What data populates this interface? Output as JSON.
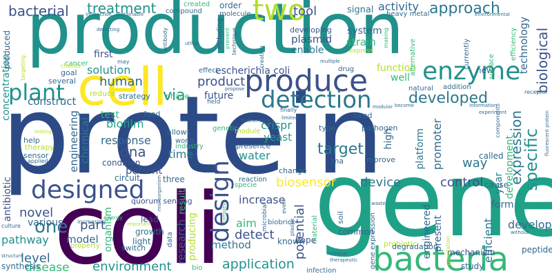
{
  "palette": {
    "navy": "#2c4a86",
    "indigo": "#3b528b",
    "purple": "#481f70",
    "dark_purple": "#440154",
    "slate": "#31688e",
    "blue": "#2a788e",
    "teal": "#21918c",
    "teal_green": "#1fa187",
    "green": "#35b779",
    "light_green": "#6ece58",
    "lime": "#b5de2b",
    "yellow": "#fde725"
  },
  "words": {
    "production": "production",
    "protein": "protein",
    "gene": "gene",
    "coli": "coli",
    "cell": "cell",
    "bacteria": "bacteria",
    "enzyme": "enzyme",
    "produce": "produce",
    "detection": "detection",
    "design": "design",
    "designed": "designed",
    "two": "two",
    "plant": "plant",
    "bacterial": "bacterial",
    "treatment": "treatment",
    "approach": "approach",
    "tool": "tool",
    "activity": "activity",
    "signal": "signal",
    "plasmid": "plasmid",
    "strain": "strain",
    "enable": "enable",
    "system": "system",
    "escherichia_coli": "escherichia coli",
    "solution": "solution",
    "first": "first",
    "human": "human",
    "product": "product",
    "via": "via",
    "developed": "developed",
    "construct": "construct",
    "future": "future",
    "function": "function",
    "specific": "specific",
    "expression": "expression",
    "biological": "biological",
    "technology": "technology",
    "promoter": "promoter",
    "platform": "platform",
    "target": "target",
    "biofilm": "biofilm",
    "response": "response",
    "dna": "dna",
    "engineering": "engineering",
    "chemical": "chemical",
    "crispr": "crispr",
    "yeast": "yeast",
    "water": "water",
    "test": "test",
    "time": "time",
    "biosensor": "biosensor",
    "device": "device",
    "control": "control",
    "way": "way",
    "high": "high",
    "one": "one",
    "novel": "novel",
    "part": "part",
    "level": "level",
    "pathway": "pathway",
    "model": "model",
    "disease": "disease",
    "environment": "environment",
    "application": "application",
    "detect": "detect",
    "method": "method",
    "aim": "aim",
    "increase": "increase",
    "potential": "potential",
    "engineered": "engineered",
    "present": "present",
    "efficient": "efficient",
    "develop": "develop",
    "form": "form",
    "year": "year",
    "development": "development",
    "research": "research",
    "producing": "producing",
    "result": "result",
    "organism": "organism",
    "various": "various",
    "antibiotic": "antibiotic",
    "concentration": "concentration",
    "produced": "produced",
    "patient": "patient",
    "condition": "condition",
    "circuit": "circuit",
    "three": "three",
    "light": "light",
    "growth": "growth",
    "lead": "lead",
    "hope": "hope",
    "common": "common",
    "known": "known",
    "mechanism": "mechanism",
    "study": "study",
    "peptide": "peptide",
    "new": "new",
    "cause": "cause",
    "called": "called",
    "improve": "improve",
    "rna": "rna",
    "change": "change",
    "type": "type",
    "pathogen": "pathogen",
    "need": "need",
    "presence": "presence",
    "biobrick": "biobrick",
    "reaction": "reaction",
    "specie": "specie",
    "quorum_sensing": "quorum sensing",
    "food": "food",
    "allows": "allows",
    "world": "world",
    "industry": "industry",
    "genetic": "genetic",
    "module": "module",
    "strategy": "strategy",
    "phage": "phage",
    "reduce": "reduce",
    "goal": "goal",
    "several": "several",
    "effect": "effect",
    "order": "order",
    "molecule": "molecule",
    "including": "including",
    "developing": "developing",
    "heavy_metal": "heavy metal",
    "compound": "compound",
    "created": "created",
    "interaction": "interaction",
    "sustainable": "sustainable",
    "drug": "drug",
    "well": "well",
    "natural": "natural",
    "addition": "addition",
    "alternative": "alternative",
    "currently": "currently",
    "efficiency": "efficiency",
    "surface": "surface",
    "environmental": "environmental",
    "receptor": "receptor",
    "information": "information",
    "switch": "switch",
    "therapy": "therapy",
    "sensor": "sensor",
    "help": "help",
    "applied": "applied",
    "cancer": "cancer",
    "synthesis": "synthesis",
    "structure": "structure",
    "culture": "culture",
    "increasing": "increasing",
    "energy": "energy",
    "important": "important",
    "property": "property",
    "bio": "bio",
    "data": "data",
    "microbial": "microbial",
    "plastic": "plastic",
    "even": "even",
    "material": "material",
    "soil": "soil",
    "gene_expression": "gene expression",
    "infection": "infection",
    "release": "release",
    "probiotic": "probiotic",
    "degradation": "degradation",
    "population": "population",
    "without": "without",
    "fluorescent_protein": "fluorescent protein",
    "experiment": "experiment",
    "components": "components",
    "multiple": "multiple",
    "express": "express",
    "making": "making",
    "detecting": "detecting",
    "utilize": "utilize",
    "prevent": "prevent",
    "technique": "technique",
    "creating": "creating",
    "chassis": "chassis",
    "targeting": "targeting",
    "antibody": "antibody",
    "may": "may",
    "propose": "propose",
    "finally": "finally",
    "limited": "limited",
    "furthermore": "furthermore",
    "modular": "modular",
    "become": "become",
    "testing": "testing",
    "microorganism": "microorganism",
    "complex": "complex",
    "therapeutic": "therapeutic",
    "waste": "waste",
    "field": "field"
  }
}
